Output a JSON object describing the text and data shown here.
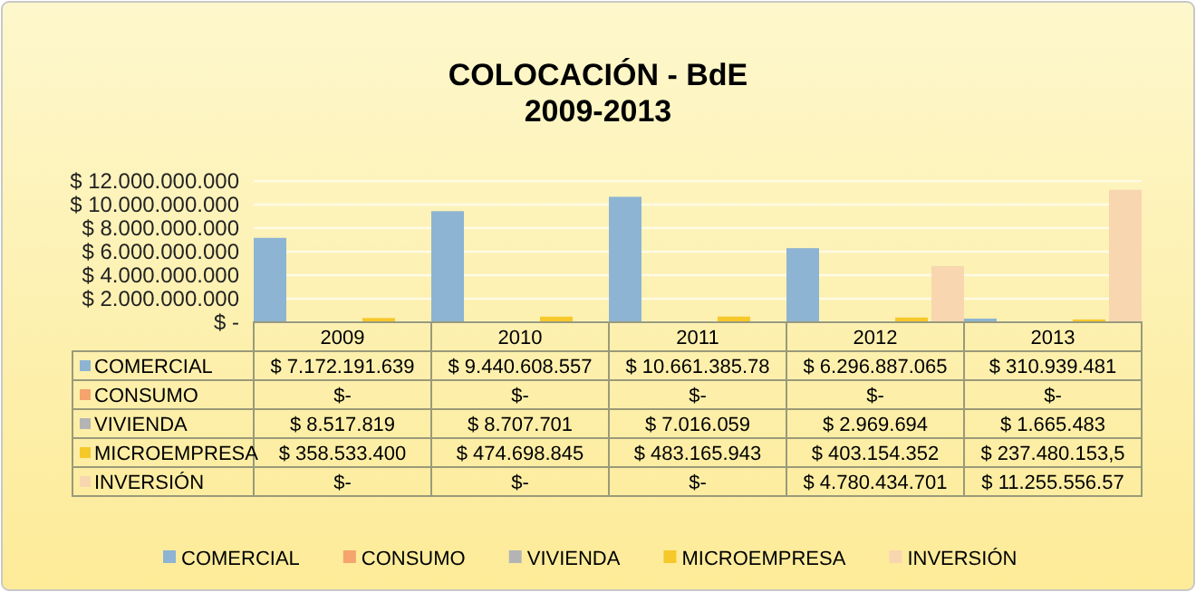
{
  "chart_data": {
    "type": "bar",
    "title": "COLOCACIÓN - BdE",
    "subtitle": "2009-2013",
    "categories": [
      "2009",
      "2010",
      "2011",
      "2012",
      "2013"
    ],
    "ylim": [
      0,
      12000000000
    ],
    "yticks": [
      {
        "value": 0,
        "label": "$ -"
      },
      {
        "value": 2000000000,
        "label": "$ 2.000.000.000"
      },
      {
        "value": 4000000000,
        "label": "$ 4.000.000.000"
      },
      {
        "value": 6000000000,
        "label": "$ 6.000.000.000"
      },
      {
        "value": 8000000000,
        "label": "$ 8.000.000.000"
      },
      {
        "value": 10000000000,
        "label": "$ 10.000.000.000"
      },
      {
        "value": 12000000000,
        "label": "$ 12.000.000.000"
      }
    ],
    "grid": "y",
    "legend": "bottom",
    "series": [
      {
        "name": "COMERCIAL",
        "color": "#8db4d2",
        "values": [
          7172191639,
          9440608557,
          10661385780,
          6296887065,
          310939481
        ],
        "value_labels": [
          "$ 7.172.191.639",
          "$ 9.440.608.557",
          "$ 10.661.385.78",
          "$ 6.296.887.065",
          "$ 310.939.481"
        ]
      },
      {
        "name": "CONSUMO",
        "color": "#f4a46c",
        "values": [
          0,
          0,
          0,
          0,
          0
        ],
        "value_labels": [
          "$-",
          "$-",
          "$-",
          "$-",
          "$-"
        ]
      },
      {
        "name": "VIVIENDA",
        "color": "#b4b4b4",
        "values": [
          8517819,
          8707701,
          7016059,
          2969694,
          1665483
        ],
        "value_labels": [
          "$ 8.517.819",
          "$ 8.707.701",
          "$ 7.016.059",
          "$ 2.969.694",
          "$ 1.665.483"
        ]
      },
      {
        "name": "MICROEMPRESA",
        "color": "#f6c82a",
        "values": [
          358533400,
          474698845,
          483165943,
          403154352,
          237480153.5
        ],
        "value_labels": [
          "$ 358.533.400",
          "$ 474.698.845",
          "$ 483.165.943",
          "$ 403.154.352",
          "$ 237.480.153,5"
        ]
      },
      {
        "name": "INVERSIÓN",
        "color": "#f8d6b0",
        "values": [
          0,
          0,
          0,
          4780434701,
          11255556570
        ],
        "value_labels": [
          "$-",
          "$-",
          "$-",
          "$ 4.780.434.701",
          "$ 11.255.556.57"
        ]
      }
    ]
  }
}
